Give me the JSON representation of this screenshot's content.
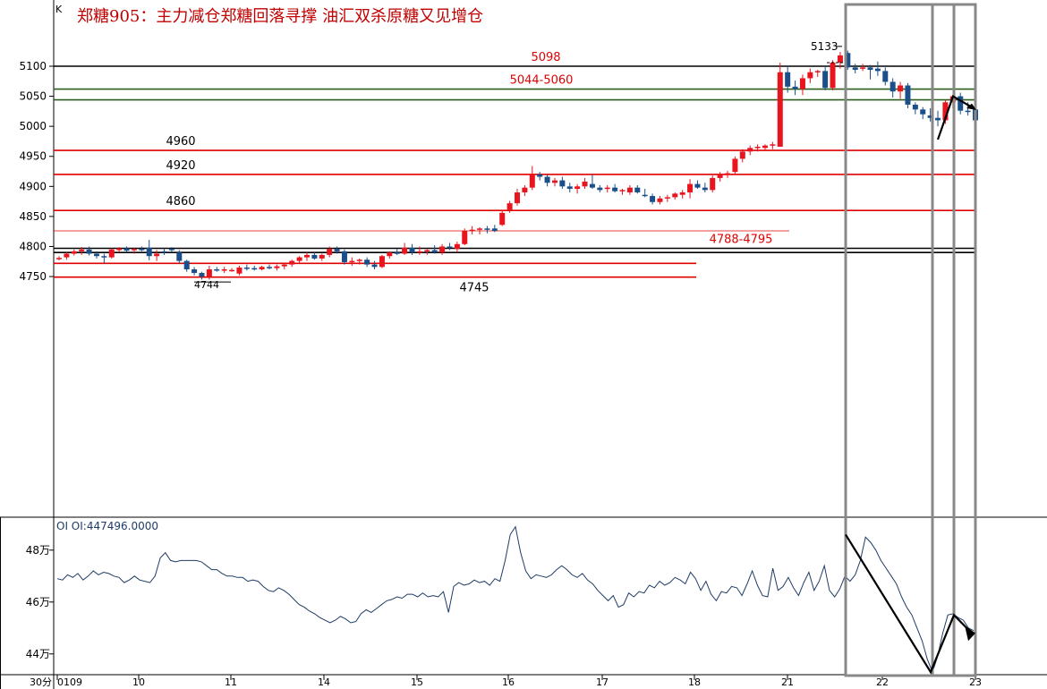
{
  "chart_data": {
    "type": "candlestick",
    "title": "郑糖905：主力减仓郑糖回落寻撑  油汇双杀原糖又见增仓",
    "corner_label": "K",
    "period_label": "30分",
    "x_ticks": [
      "0109",
      "10",
      "11",
      "14",
      "15",
      "16",
      "17",
      "18",
      "21",
      "22",
      "23"
    ],
    "price_axis": {
      "ylim": [
        4740,
        5140
      ],
      "ticks": [
        4750,
        4800,
        4850,
        4900,
        4950,
        5000,
        5050,
        5100
      ]
    },
    "levels": [
      {
        "label": "5098",
        "value": 5100,
        "color": "#000000"
      },
      {
        "label": "5044-5060",
        "value": 5062,
        "color": "#2e5e1e"
      },
      {
        "label": "",
        "value": 5044,
        "color": "#2e5e1e"
      },
      {
        "label": "4960",
        "value": 4960,
        "color": "#e00000"
      },
      {
        "label": "4920",
        "value": 4920,
        "color": "#e00000"
      },
      {
        "label": "4860",
        "value": 4860,
        "color": "#e00000"
      },
      {
        "label": "",
        "value": 4826,
        "color": "#e00000"
      },
      {
        "label": "4788-4795",
        "value": 4797,
        "color": "#000000"
      },
      {
        "label": "",
        "value": 4790,
        "color": "#000000"
      },
      {
        "label": "",
        "value": 4772,
        "color": "#e00000"
      },
      {
        "label": "4745",
        "value": 4749,
        "color": "#e00000"
      }
    ],
    "annotations": [
      {
        "text": "5133",
        "value": 5133
      },
      {
        "text": "4744",
        "value": 4744
      }
    ],
    "candles": [
      [
        4779,
        4784,
        4777,
        4781
      ],
      [
        4782,
        4790,
        4778,
        4788
      ],
      [
        4788,
        4795,
        4785,
        4792
      ],
      [
        4792,
        4799,
        4786,
        4795
      ],
      [
        4795,
        4800,
        4785,
        4788
      ],
      [
        4788,
        4792,
        4780,
        4784
      ],
      [
        4784,
        4788,
        4772,
        4782
      ],
      [
        4782,
        4797,
        4780,
        4795
      ],
      [
        4794,
        4799,
        4790,
        4797
      ],
      [
        4797,
        4800,
        4790,
        4793
      ],
      [
        4794,
        4798,
        4788,
        4796
      ],
      [
        4796,
        4800,
        4792,
        4794
      ],
      [
        4798,
        4811,
        4777,
        4784
      ],
      [
        4784,
        4794,
        4776,
        4788
      ],
      [
        4792,
        4797,
        4786,
        4790
      ],
      [
        4796,
        4799,
        4790,
        4794
      ],
      [
        4790,
        4794,
        4772,
        4776
      ],
      [
        4776,
        4778,
        4758,
        4762
      ],
      [
        4762,
        4766,
        4752,
        4756
      ],
      [
        4756,
        4758,
        4745,
        4750
      ],
      [
        4750,
        4768,
        4745,
        4762
      ],
      [
        4762,
        4766,
        4758,
        4760
      ],
      [
        4760,
        4766,
        4756,
        4762
      ],
      [
        4760,
        4764,
        4758,
        4761
      ],
      [
        4755,
        4768,
        4752,
        4765
      ],
      [
        4765,
        4770,
        4760,
        4764
      ],
      [
        4764,
        4768,
        4760,
        4762
      ],
      [
        4762,
        4768,
        4760,
        4766
      ],
      [
        4766,
        4770,
        4762,
        4764
      ],
      [
        4764,
        4770,
        4760,
        4767
      ],
      [
        4767,
        4772,
        4762,
        4770
      ],
      [
        4770,
        4778,
        4766,
        4776
      ],
      [
        4776,
        4784,
        4772,
        4782
      ],
      [
        4782,
        4790,
        4776,
        4786
      ],
      [
        4786,
        4790,
        4778,
        4780
      ],
      [
        4780,
        4788,
        4776,
        4786
      ],
      [
        4786,
        4800,
        4782,
        4796
      ],
      [
        4796,
        4800,
        4788,
        4792
      ],
      [
        4792,
        4795,
        4770,
        4774
      ],
      [
        4774,
        4782,
        4768,
        4776
      ],
      [
        4776,
        4780,
        4770,
        4778
      ],
      [
        4778,
        4782,
        4766,
        4770
      ],
      [
        4770,
        4776,
        4762,
        4766
      ],
      [
        4766,
        4786,
        4764,
        4784
      ],
      [
        4784,
        4792,
        4780,
        4790
      ],
      [
        4790,
        4796,
        4786,
        4788
      ],
      [
        4788,
        4806,
        4786,
        4798
      ],
      [
        4798,
        4804,
        4786,
        4790
      ],
      [
        4790,
        4800,
        4786,
        4792
      ],
      [
        4792,
        4796,
        4786,
        4794
      ],
      [
        4794,
        4802,
        4788,
        4790
      ],
      [
        4790,
        4804,
        4786,
        4800
      ],
      [
        4800,
        4806,
        4794,
        4798
      ],
      [
        4796,
        4808,
        4790,
        4804
      ],
      [
        4804,
        4830,
        4802,
        4826
      ],
      [
        4826,
        4834,
        4820,
        4828
      ],
      [
        4828,
        4832,
        4820,
        4830
      ],
      [
        4830,
        4834,
        4822,
        4828
      ],
      [
        4830,
        4836,
        4824,
        4826
      ],
      [
        4836,
        4860,
        4834,
        4856
      ],
      [
        4860,
        4876,
        4856,
        4872
      ],
      [
        4872,
        4896,
        4868,
        4890
      ],
      [
        4890,
        4902,
        4884,
        4898
      ],
      [
        4898,
        4934,
        4894,
        4920
      ],
      [
        4920,
        4924,
        4910,
        4916
      ],
      [
        4916,
        4920,
        4900,
        4906
      ],
      [
        4906,
        4914,
        4900,
        4910
      ],
      [
        4910,
        4916,
        4896,
        4900
      ],
      [
        4900,
        4906,
        4890,
        4896
      ],
      [
        4896,
        4904,
        4888,
        4900
      ],
      [
        4900,
        4914,
        4896,
        4908
      ],
      [
        4904,
        4920,
        4896,
        4898
      ],
      [
        4898,
        4902,
        4890,
        4894
      ],
      [
        4896,
        4902,
        4890,
        4898
      ],
      [
        4898,
        4904,
        4890,
        4892
      ],
      [
        4892,
        4896,
        4886,
        4894
      ],
      [
        4890,
        4902,
        4886,
        4898
      ],
      [
        4898,
        4902,
        4888,
        4890
      ],
      [
        4886,
        4896,
        4882,
        4884
      ],
      [
        4884,
        4888,
        4870,
        4874
      ],
      [
        4874,
        4884,
        4870,
        4880
      ],
      [
        4880,
        4886,
        4874,
        4882
      ],
      [
        4882,
        4890,
        4878,
        4888
      ],
      [
        4886,
        4894,
        4880,
        4890
      ],
      [
        4890,
        4912,
        4880,
        4904
      ],
      [
        4904,
        4910,
        4896,
        4898
      ],
      [
        4898,
        4906,
        4890,
        4894
      ],
      [
        4894,
        4918,
        4890,
        4914
      ],
      [
        4914,
        4924,
        4908,
        4920
      ],
      [
        4920,
        4926,
        4914,
        4922
      ],
      [
        4924,
        4950,
        4920,
        4946
      ],
      [
        4946,
        4962,
        4940,
        4958
      ],
      [
        4958,
        4968,
        4952,
        4964
      ],
      [
        4964,
        4970,
        4958,
        4966
      ],
      [
        4964,
        4970,
        4960,
        4968
      ],
      [
        4968,
        4974,
        4962,
        4970
      ],
      [
        4966,
        5106,
        4966,
        5090
      ],
      [
        5090,
        5100,
        5056,
        5066
      ],
      [
        5066,
        5076,
        5052,
        5062
      ],
      [
        5062,
        5086,
        5052,
        5080
      ],
      [
        5080,
        5096,
        5072,
        5090
      ],
      [
        5090,
        5094,
        5082,
        5092
      ],
      [
        5092,
        5100,
        5060,
        5064
      ],
      [
        5064,
        5110,
        5060,
        5106
      ],
      [
        5106,
        5124,
        5096,
        5118
      ],
      [
        5122,
        5126,
        5094,
        5098
      ],
      [
        5098,
        5104,
        5088,
        5094
      ],
      [
        5096,
        5104,
        5092,
        5098
      ],
      [
        5098,
        5102,
        5078,
        5094
      ],
      [
        5096,
        5108,
        5084,
        5092
      ],
      [
        5092,
        5098,
        5068,
        5074
      ],
      [
        5074,
        5080,
        5048,
        5058
      ],
      [
        5058,
        5074,
        5046,
        5068
      ],
      [
        5068,
        5072,
        5030,
        5036
      ],
      [
        5036,
        5040,
        5020,
        5028
      ],
      [
        5028,
        5032,
        5012,
        5020
      ],
      [
        5018,
        5030,
        5008,
        5014
      ],
      [
        5014,
        5026,
        5000,
        5010
      ],
      [
        5010,
        5044,
        5004,
        5040
      ],
      [
        5040,
        5052,
        5030,
        5050
      ],
      [
        5050,
        5056,
        5020,
        5026
      ],
      [
        5026,
        5040,
        5018,
        5024
      ],
      [
        5028,
        5034,
        4998,
        5010
      ]
    ],
    "oi_series": {
      "name": "OI",
      "label": "OI OI:447496.0000",
      "ylim": [
        43.2,
        49.2
      ],
      "ticks": [
        {
          "v": 48,
          "label": "48万"
        },
        {
          "v": 46,
          "label": "46万"
        },
        {
          "v": 44,
          "label": "44万"
        }
      ],
      "values": [
        46.9,
        46.85,
        47.05,
        46.95,
        47.1,
        46.85,
        47.0,
        47.2,
        47.05,
        47.15,
        47.1,
        47.0,
        46.95,
        46.75,
        46.85,
        47.0,
        46.85,
        46.8,
        46.75,
        47.0,
        47.7,
        47.9,
        47.6,
        47.55,
        47.6,
        47.6,
        47.6,
        47.6,
        47.55,
        47.4,
        47.25,
        47.25,
        47.1,
        47.0,
        47.0,
        46.95,
        46.95,
        46.8,
        46.85,
        46.8,
        46.6,
        46.45,
        46.4,
        46.55,
        46.45,
        46.3,
        46.1,
        45.9,
        45.8,
        45.65,
        45.55,
        45.4,
        45.3,
        45.2,
        45.3,
        45.45,
        45.35,
        45.2,
        45.25,
        45.55,
        45.7,
        45.6,
        45.75,
        45.9,
        46.05,
        46.1,
        46.2,
        46.15,
        46.3,
        46.3,
        46.2,
        46.35,
        46.2,
        46.25,
        46.2,
        46.4,
        45.6,
        46.6,
        46.75,
        46.65,
        46.7,
        46.85,
        46.75,
        46.8,
        46.65,
        46.9,
        46.8,
        47.6,
        48.6,
        48.9,
        47.9,
        47.2,
        46.9,
        47.05,
        47.0,
        46.95,
        47.05,
        47.25,
        47.4,
        47.25,
        47.05,
        46.95,
        47.1,
        46.85,
        46.7,
        46.45,
        46.25,
        46.05,
        46.25,
        45.8,
        45.9,
        46.35,
        46.2,
        46.4,
        46.35,
        46.65,
        46.55,
        46.8,
        46.65,
        46.75,
        46.95,
        46.85,
        46.7,
        47.15,
        46.9,
        46.45,
        46.8,
        46.3,
        46.05,
        46.4,
        46.35,
        46.6,
        46.55,
        46.25,
        46.7,
        47.2,
        46.65,
        46.25,
        46.2,
        47.3,
        46.45,
        46.6,
        46.95,
        46.55,
        46.25,
        46.75,
        47.15,
        46.45,
        46.8,
        47.4,
        46.45,
        46.2,
        46.5,
        47.0,
        46.8,
        47.05,
        47.6,
        48.5,
        48.3,
        48.0,
        47.6,
        47.3,
        47.0,
        46.7,
        46.2,
        45.8,
        45.5,
        45.0,
        44.5,
        43.8,
        43.3,
        43.9,
        44.8,
        45.5,
        45.55,
        45.4,
        45.3,
        45.0,
        44.9
      ]
    }
  }
}
